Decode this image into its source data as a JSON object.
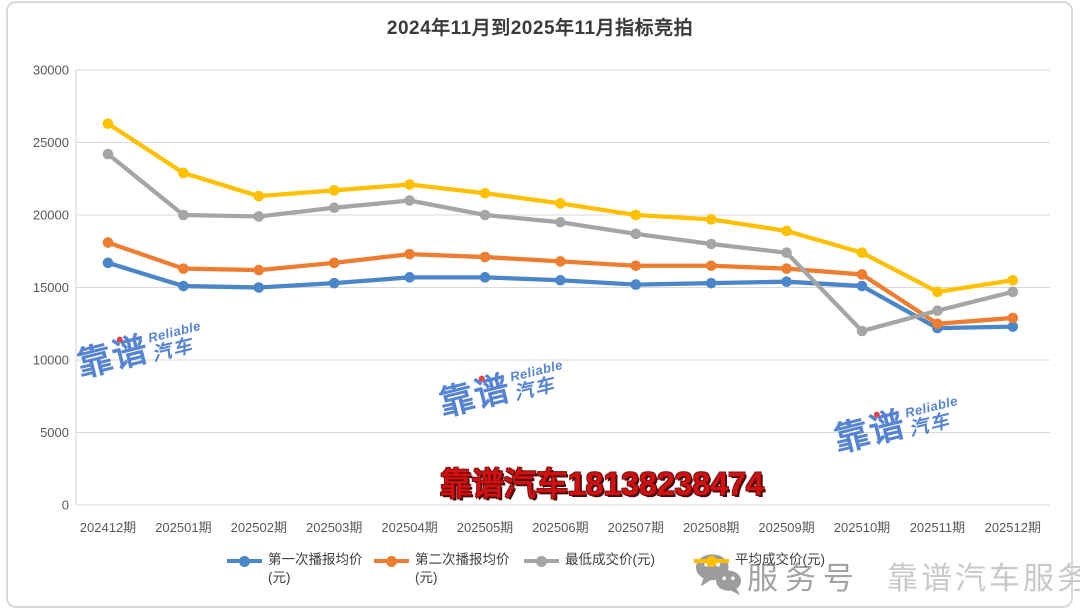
{
  "title": "2024年11月到2025年11月指标竞拍",
  "chart_data": {
    "type": "line",
    "title": "2024年11月到2025年11月指标竞拍",
    "categories": [
      "202412期",
      "202501期",
      "202502期",
      "202503期",
      "202504期",
      "202505期",
      "202506期",
      "202507期",
      "202508期",
      "202509期",
      "202510期",
      "202511期",
      "202512期"
    ],
    "series": [
      {
        "name": "第一次播报均价(元)",
        "color": "#4a86c8",
        "values": [
          16700,
          15100,
          15000,
          15300,
          15700,
          15700,
          15500,
          15200,
          15300,
          15400,
          15100,
          12200,
          12300
        ]
      },
      {
        "name": "第二次播报均价(元)",
        "color": "#ed7d31",
        "values": [
          18100,
          16300,
          16200,
          16700,
          17300,
          17100,
          16800,
          16500,
          16500,
          16300,
          15900,
          12500,
          12900
        ]
      },
      {
        "name": "最低成交价(元)",
        "color": "#a5a5a5",
        "values": [
          24200,
          20000,
          19900,
          20500,
          21000,
          20000,
          19500,
          18700,
          18000,
          17400,
          12000,
          13400,
          14700
        ]
      },
      {
        "name": "平均成交价(元)",
        "color": "#ffc000",
        "values": [
          26300,
          22900,
          21300,
          21700,
          22100,
          21500,
          20800,
          20000,
          19700,
          18900,
          17400,
          14700,
          15500
        ]
      }
    ],
    "ylim": [
      0,
      30000
    ],
    "yticks": [
      0,
      5000,
      10000,
      15000,
      20000,
      25000,
      30000
    ],
    "grid": "horizontal",
    "legend_position": "bottom"
  },
  "legend": {
    "items": [
      {
        "label": "第一次播报均价",
        "label2": "(元)",
        "color": "#4a86c8"
      },
      {
        "label": "第二次播报均价",
        "label2": "(元)",
        "color": "#ed7d31"
      },
      {
        "label": "最低成交价(元)",
        "label2": "",
        "color": "#a5a5a5"
      },
      {
        "label": "平均成交价(元)",
        "label2": "",
        "color": "#ffc000"
      }
    ]
  },
  "watermarks": {
    "brand": "靠谱",
    "car": "汽车",
    "reliable": "Reliable",
    "phone_line": "靠谱汽车18138238474",
    "wechat_account_type": "服务号",
    "wechat_account_name": "靠谱汽车服务"
  },
  "colors": {
    "grid": "#d9d9d9",
    "axis_text": "#595959",
    "red_text": "#d40f0f",
    "brand_blue": "#4477ce",
    "gray_watermark": "#c9c9c9"
  }
}
